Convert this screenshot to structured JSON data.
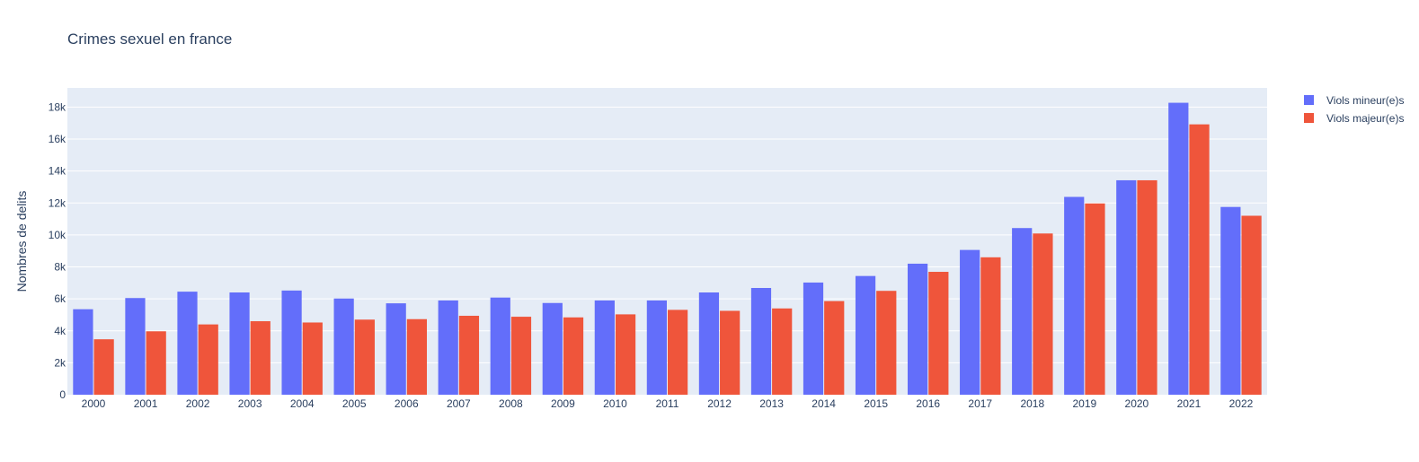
{
  "chart_data": {
    "type": "bar",
    "title": "Crimes sexuel en france",
    "xlabel": "",
    "ylabel": "Nombres de delits",
    "categories": [
      "2000",
      "2001",
      "2002",
      "2003",
      "2004",
      "2005",
      "2006",
      "2007",
      "2008",
      "2009",
      "2010",
      "2011",
      "2012",
      "2013",
      "2014",
      "2015",
      "2016",
      "2017",
      "2018",
      "2019",
      "2020",
      "2021",
      "2022"
    ],
    "series": [
      {
        "name": "Viols mineur(e)s",
        "color": "#636efa",
        "values": [
          5350,
          6050,
          6450,
          6400,
          6520,
          6020,
          5720,
          5900,
          6080,
          5740,
          5900,
          5900,
          6400,
          6680,
          7020,
          7430,
          8200,
          9060,
          10430,
          12380,
          13420,
          18270,
          11750
        ]
      },
      {
        "name": "Viols majeur(e)s",
        "color": "#ef553b",
        "values": [
          3470,
          3970,
          4400,
          4600,
          4520,
          4700,
          4730,
          4940,
          4880,
          4840,
          5030,
          5310,
          5250,
          5400,
          5860,
          6500,
          7690,
          8600,
          10090,
          11970,
          13420,
          16920,
          11200
        ]
      }
    ],
    "ylim": [
      0,
      19200
    ],
    "yticks": [
      0,
      2000,
      4000,
      6000,
      8000,
      10000,
      12000,
      14000,
      16000,
      18000
    ],
    "ytick_labels": [
      "0",
      "2k",
      "4k",
      "6k",
      "8k",
      "10k",
      "12k",
      "14k",
      "16k",
      "18k"
    ],
    "grid": true,
    "plot_background": "#e5ecf6",
    "legend_position": "top-right"
  }
}
